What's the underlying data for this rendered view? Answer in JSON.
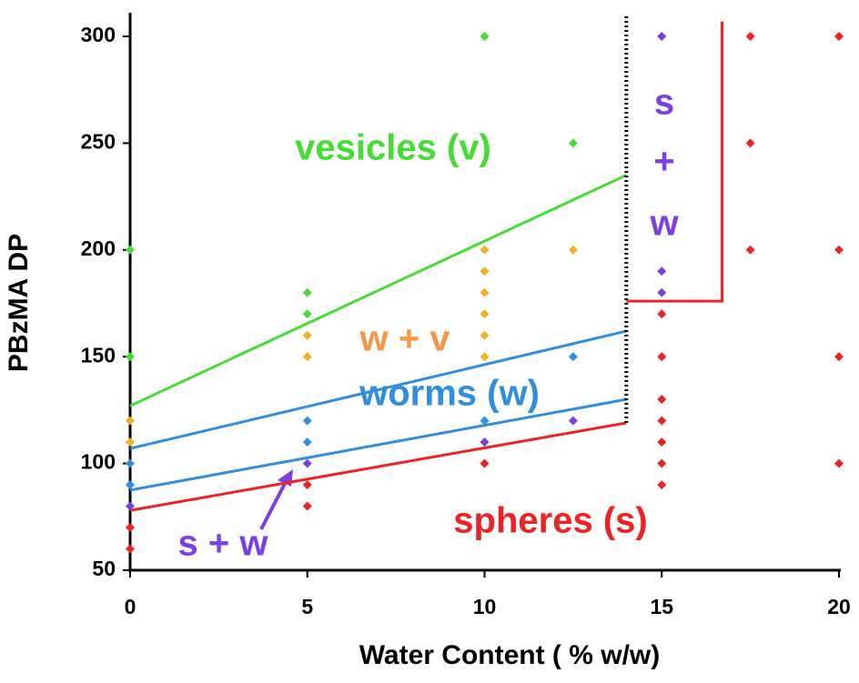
{
  "chart_data": {
    "type": "scatter",
    "xlabel": "Water Content ( % w/w)",
    "ylabel": "PBzMA DP",
    "xlim": [
      0,
      20
    ],
    "ylim": [
      50,
      300
    ],
    "xticks": [
      0,
      5,
      10,
      15,
      20
    ],
    "yticks": [
      50,
      100,
      150,
      200,
      250,
      300
    ],
    "series": [
      {
        "color": "#ee2222",
        "x": [
          0,
          0,
          5,
          5,
          10,
          15,
          15,
          15,
          15,
          15,
          15,
          15,
          17.5,
          17.5,
          17.5,
          20,
          20,
          20,
          20
        ],
        "y": [
          60,
          70,
          80,
          90,
          100,
          90,
          100,
          110,
          120,
          130,
          150,
          170,
          200,
          250,
          300,
          100,
          150,
          200,
          300
        ]
      },
      {
        "color": "#7b3fe4",
        "x": [
          0,
          5,
          10,
          12.5,
          15,
          15,
          15
        ],
        "y": [
          80,
          100,
          110,
          120,
          180,
          190,
          300
        ]
      },
      {
        "color": "#2f8ee0",
        "x": [
          0,
          0,
          5,
          5,
          10,
          12.5
        ],
        "y": [
          90,
          100,
          110,
          120,
          120,
          150
        ]
      },
      {
        "color": "#f5b020",
        "x": [
          0,
          0,
          5,
          5,
          10,
          10,
          10,
          10,
          10,
          10,
          12.5
        ],
        "y": [
          110,
          120,
          150,
          160,
          150,
          160,
          170,
          180,
          190,
          200,
          200
        ]
      },
      {
        "color": "#44dd33",
        "x": [
          0,
          0,
          5,
          5,
          10,
          12.5
        ],
        "y": [
          150,
          200,
          170,
          180,
          300,
          250
        ]
      }
    ],
    "lines": [
      {
        "color": "#44dd33",
        "x": [
          0,
          14
        ],
        "y": [
          127,
          235
        ]
      },
      {
        "color": "#2f8ee0",
        "x": [
          0,
          14
        ],
        "y": [
          107,
          162
        ]
      },
      {
        "color": "#2f8ee0",
        "x": [
          0,
          14
        ],
        "y": [
          87.5,
          130
        ]
      },
      {
        "color": "#ee2222",
        "x": [
          0,
          14
        ],
        "y": [
          78,
          119
        ]
      },
      {
        "color": "#000000",
        "style": "dotted",
        "x": [
          14,
          14
        ],
        "y": [
          119,
          310
        ]
      },
      {
        "color": "#ee2222",
        "x": [
          14,
          16.7,
          16.7
        ],
        "y": [
          176,
          176,
          307
        ]
      }
    ],
    "annotations": [
      {
        "text": "vesicles (v)",
        "color": "#44dd33"
      },
      {
        "text": "w + v",
        "color": "#f79646"
      },
      {
        "text": "worms (w)",
        "color": "#2f8ee0"
      },
      {
        "text": "spheres (s)",
        "color": "#ee2222"
      },
      {
        "text": "s + w",
        "color": "#7b3fe4"
      },
      {
        "text": "s",
        "color": "#7b3fe4"
      },
      {
        "text": "+",
        "color": "#7b3fe4"
      },
      {
        "text": "w",
        "color": "#7b3fe4"
      }
    ]
  }
}
